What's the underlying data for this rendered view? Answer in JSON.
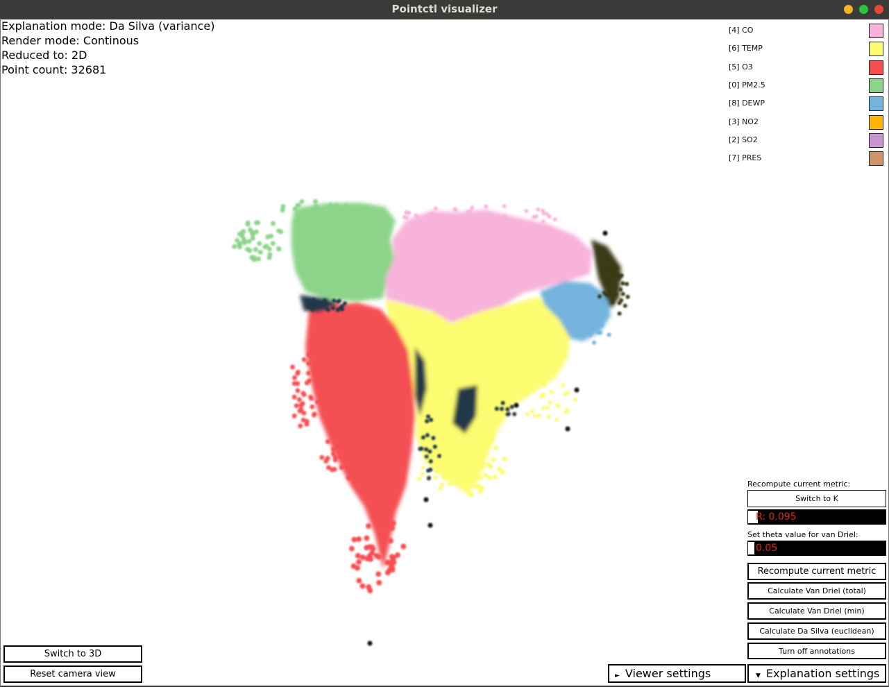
{
  "window": {
    "title": "Pointctl visualizer"
  },
  "colors": {
    "titlebar": "#3b3b39",
    "minimize": "#f5b42a",
    "maximize": "#2fc23f",
    "close": "#e8473f"
  },
  "info": {
    "explanation_mode": "Explanation mode: Da Silva (variance)",
    "render_mode": "Render mode: Continous",
    "reduced_to": "Reduced to: 2D",
    "point_count": "Point count: 32681"
  },
  "legend": [
    {
      "label": "[4] CO",
      "color": "#f7b3d9"
    },
    {
      "label": "[6] TEMP",
      "color": "#fcfc70"
    },
    {
      "label": "[5] O3",
      "color": "#f44f52"
    },
    {
      "label": "[0] PM2.5",
      "color": "#8cd48a"
    },
    {
      "label": "[8] DEWP",
      "color": "#73b3dc"
    },
    {
      "label": "[3] NO2",
      "color": "#ffb400"
    },
    {
      "label": "[2] SO2",
      "color": "#c796cf"
    },
    {
      "label": "[7] PRES",
      "color": "#cf9468"
    }
  ],
  "panel": {
    "recompute_label": "Recompute current metric:",
    "switch_k": "Switch to K",
    "r_value": "R: 0.095",
    "theta_label": "Set theta value for van Driel:",
    "theta_value": "0.05",
    "recompute_button": "Recompute current metric",
    "van_driel_total": "Calculate Van Driel (total)",
    "van_driel_min": "Calculate Van Driel (min)",
    "da_silva_euclid": "Calculate Da Silva (euclidean)",
    "annotations": "Turn off annotations"
  },
  "bottom": {
    "switch_3d": "Switch to 3D",
    "reset_camera": "Reset camera view",
    "viewer_settings": "Viewer settings",
    "explanation_settings": "Explanation settings"
  }
}
